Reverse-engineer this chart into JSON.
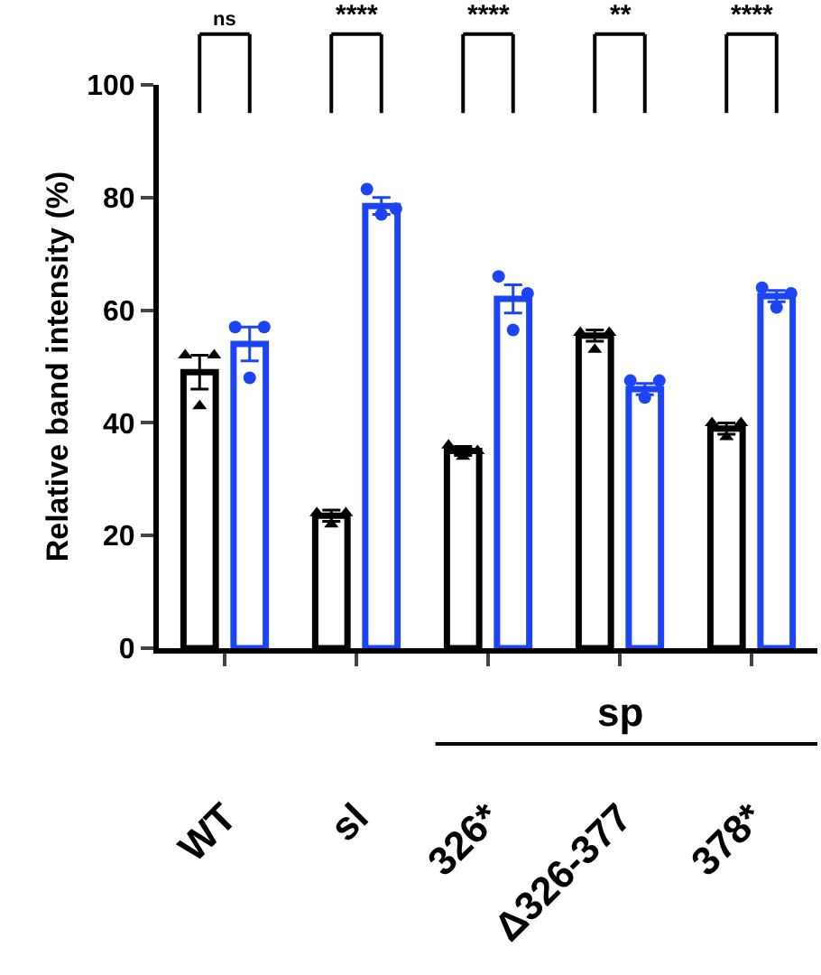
{
  "chart_data": {
    "type": "bar",
    "ylabel": "Relative band intensity (%)",
    "categories": [
      "WT",
      "sl",
      "326*",
      "Δ326-377",
      "378*"
    ],
    "series": [
      {
        "color": "#000000",
        "values": [
          49,
          23.5,
          35,
          55.5,
          39
        ],
        "errors": [
          3,
          1,
          0.8,
          1,
          1
        ]
      },
      {
        "color": "#1a44f5",
        "values": [
          54,
          78.5,
          62,
          46,
          62.5
        ],
        "errors": [
          3,
          1.5,
          2.5,
          1,
          1
        ]
      },
      {
        "type": "scatter",
        "marker": "triangle",
        "color": "#000000",
        "x": [
          "WT",
          "WT",
          "WT",
          "sl",
          "sl",
          "sl",
          "326*",
          "326*",
          "326*",
          "Δ326-377",
          "Δ326-377",
          "Δ326-377",
          "378*",
          "378*",
          "378*"
        ],
        "values": [
          52,
          52,
          43,
          24,
          24,
          22,
          36,
          35,
          34,
          56,
          56,
          53,
          40,
          40,
          37.5
        ]
      },
      {
        "type": "scatter",
        "marker": "circle",
        "color": "#1a44f5",
        "x": [
          "WT",
          "WT",
          "WT",
          "sl",
          "sl",
          "sl",
          "326*",
          "326*",
          "326*",
          "Δ326-377",
          "Δ326-377",
          "Δ326-377",
          "378*",
          "378*",
          "378*"
        ],
        "values": [
          57,
          57,
          48,
          81.5,
          78,
          77,
          66,
          63,
          56.5,
          47.5,
          47.5,
          44.5,
          64,
          63,
          60.5
        ]
      }
    ],
    "ylim": [
      0,
      100
    ],
    "yticks": [
      0,
      20,
      40,
      60,
      80,
      100
    ],
    "annotations": [
      "ns",
      "****",
      "****",
      "**",
      "****",
      "sp"
    ]
  }
}
